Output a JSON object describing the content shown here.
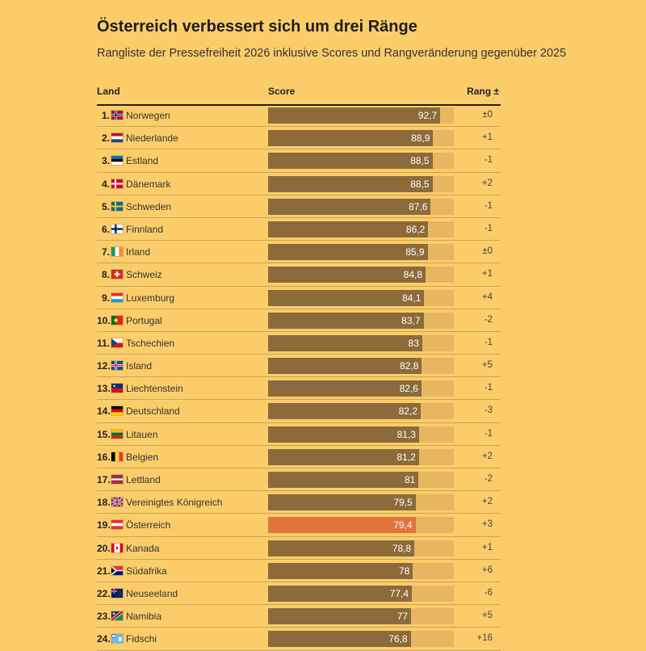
{
  "title": "Österreich verbessert sich um drei Ränge",
  "subtitle": "Rangliste der Pressefreiheit 2026 inklusive Scores und Rangveränderung gegenüber 2025",
  "columns": {
    "land": "Land",
    "score": "Score",
    "rank_change": "Rang ±"
  },
  "colors": {
    "bar": "#8c6a3a",
    "highlight": "#e0763a",
    "track": "#e6b660",
    "background": "#fbcd6a"
  },
  "chart_data": {
    "type": "bar",
    "orientation": "horizontal",
    "title": "Österreich verbessert sich um drei Ränge",
    "subtitle": "Rangliste der Pressefreiheit 2026 inklusive Scores und Rangveränderung gegenüber 2025",
    "xlim": [
      0,
      100
    ],
    "highlight": "Österreich",
    "rows": [
      {
        "rank": "1.",
        "flag": "no",
        "country": "Norwegen",
        "score": 92.7,
        "score_label": "92,7",
        "change": "±0"
      },
      {
        "rank": "2.",
        "flag": "nl",
        "country": "Niederlande",
        "score": 88.9,
        "score_label": "88,9",
        "change": "+1"
      },
      {
        "rank": "3.",
        "flag": "ee",
        "country": "Estland",
        "score": 88.5,
        "score_label": "88,5",
        "change": "-1"
      },
      {
        "rank": "4.",
        "flag": "dk",
        "country": "Dänemark",
        "score": 88.5,
        "score_label": "88,5",
        "change": "+2"
      },
      {
        "rank": "5.",
        "flag": "se",
        "country": "Schweden",
        "score": 87.6,
        "score_label": "87,6",
        "change": "-1"
      },
      {
        "rank": "6.",
        "flag": "fi",
        "country": "Finnland",
        "score": 86.2,
        "score_label": "86,2",
        "change": "-1"
      },
      {
        "rank": "7.",
        "flag": "ie",
        "country": "Irland",
        "score": 85.9,
        "score_label": "85,9",
        "change": "±0"
      },
      {
        "rank": "8.",
        "flag": "ch",
        "country": "Schweiz",
        "score": 84.8,
        "score_label": "84,8",
        "change": "+1"
      },
      {
        "rank": "9.",
        "flag": "lu",
        "country": "Luxemburg",
        "score": 84.1,
        "score_label": "84,1",
        "change": "+4"
      },
      {
        "rank": "10.",
        "flag": "pt",
        "country": "Portugal",
        "score": 83.7,
        "score_label": "83,7",
        "change": "-2"
      },
      {
        "rank": "11.",
        "flag": "cz",
        "country": "Tschechien",
        "score": 83,
        "score_label": "83",
        "change": "-1"
      },
      {
        "rank": "12.",
        "flag": "is",
        "country": "Island",
        "score": 82.8,
        "score_label": "82,8",
        "change": "+5"
      },
      {
        "rank": "13.",
        "flag": "li",
        "country": "Liechtenstein",
        "score": 82.6,
        "score_label": "82,6",
        "change": "-1"
      },
      {
        "rank": "14.",
        "flag": "de",
        "country": "Deutschland",
        "score": 82.2,
        "score_label": "82,2",
        "change": "-3"
      },
      {
        "rank": "15.",
        "flag": "lt",
        "country": "Litauen",
        "score": 81.3,
        "score_label": "81,3",
        "change": "-1"
      },
      {
        "rank": "16.",
        "flag": "be",
        "country": "Belgien",
        "score": 81.2,
        "score_label": "81,2",
        "change": "+2"
      },
      {
        "rank": "17.",
        "flag": "lv",
        "country": "Lettland",
        "score": 81,
        "score_label": "81",
        "change": "-2"
      },
      {
        "rank": "18.",
        "flag": "gb",
        "country": "Vereinigtes Königreich",
        "score": 79.5,
        "score_label": "79,5",
        "change": "+2"
      },
      {
        "rank": "19.",
        "flag": "at",
        "country": "Österreich",
        "score": 79.4,
        "score_label": "79,4",
        "change": "+3"
      },
      {
        "rank": "20.",
        "flag": "ca",
        "country": "Kanada",
        "score": 78.8,
        "score_label": "78,8",
        "change": "+1"
      },
      {
        "rank": "21.",
        "flag": "za",
        "country": "Südafrika",
        "score": 78,
        "score_label": "78",
        "change": "+6"
      },
      {
        "rank": "22.",
        "flag": "nz",
        "country": "Neuseeland",
        "score": 77.4,
        "score_label": "77,4",
        "change": "-6"
      },
      {
        "rank": "23.",
        "flag": "na",
        "country": "Namibia",
        "score": 77,
        "score_label": "77",
        "change": "+5"
      },
      {
        "rank": "24.",
        "flag": "fj",
        "country": "Fidschi",
        "score": 76.8,
        "score_label": "76,8",
        "change": "+16"
      }
    ]
  }
}
